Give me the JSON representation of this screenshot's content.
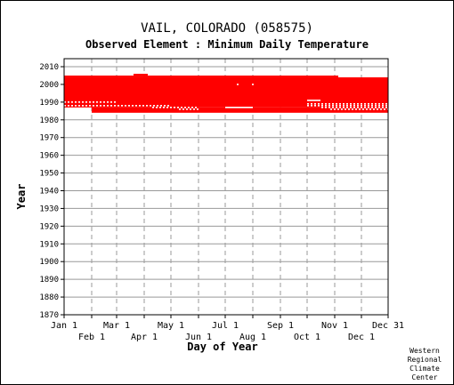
{
  "chart_data": {
    "type": "scatter",
    "title": "VAIL, COLORADO   (058575)",
    "subtitle": "Observed Element : Minimum Daily Temperature",
    "xlabel": "Day of Year",
    "ylabel": "Year",
    "x_ticks_top": [
      "Jan 1",
      "Mar 1",
      "May 1",
      "Jul 1",
      "Sep 1",
      "Nov 1",
      "Dec 31"
    ],
    "x_ticks_bottom": [
      "Feb 1",
      "Apr 1",
      "Jun 1",
      "Aug 1",
      "Oct 1",
      "Dec 1"
    ],
    "x_tick_days_top": [
      1,
      60,
      121,
      182,
      244,
      305,
      365
    ],
    "x_tick_days_bottom": [
      32,
      91,
      152,
      213,
      274,
      335
    ],
    "y_ticks": [
      2010,
      2000,
      1990,
      1980,
      1970,
      1960,
      1950,
      1940,
      1930,
      1920,
      1910,
      1900,
      1890,
      1880,
      1870
    ],
    "xlim": [
      1,
      365
    ],
    "ylim": [
      1870,
      2011
    ],
    "grid": true,
    "marker_color": "#ff0000",
    "data_blocks": [
      {
        "years": [
          1987,
          2004
        ],
        "days": [
          1,
          365
        ]
      },
      {
        "years": [
          1984,
          1987
        ],
        "days": [
          32,
          365
        ]
      },
      {
        "years": [
          2004,
          2005
        ],
        "days": [
          1,
          309
        ]
      },
      {
        "years": [
          2005,
          2006
        ],
        "days": [
          79,
          95
        ]
      }
    ],
    "gaps": [
      {
        "year": 1990,
        "days": [
          1,
          60
        ],
        "pattern": "dash"
      },
      {
        "year": 1988,
        "days": [
          1,
          121
        ],
        "pattern": "dash"
      },
      {
        "year": 1987,
        "days": [
          100,
          152
        ],
        "pattern": "dash"
      },
      {
        "year": 1986,
        "days": [
          130,
          152
        ],
        "pattern": "dash"
      },
      {
        "year": 1987,
        "days": [
          182,
          213
        ],
        "pattern": "solid"
      },
      {
        "year": 1991,
        "days": [
          274,
          289
        ],
        "pattern": "solid"
      },
      {
        "year": 1989,
        "days": [
          274,
          365
        ],
        "pattern": "dash"
      },
      {
        "year": 1988,
        "days": [
          274,
          365
        ],
        "pattern": "dash"
      },
      {
        "year": 1987,
        "days": [
          290,
          365
        ],
        "pattern": "dash"
      },
      {
        "year": 1986,
        "days": [
          300,
          365
        ],
        "pattern": "dash"
      },
      {
        "year": 2000,
        "days": [
          195,
          197
        ],
        "pattern": "solid"
      },
      {
        "year": 2000,
        "days": [
          212,
          214
        ],
        "pattern": "solid"
      }
    ]
  },
  "credit": [
    "Western",
    "Regional",
    "Climate",
    "Center"
  ]
}
